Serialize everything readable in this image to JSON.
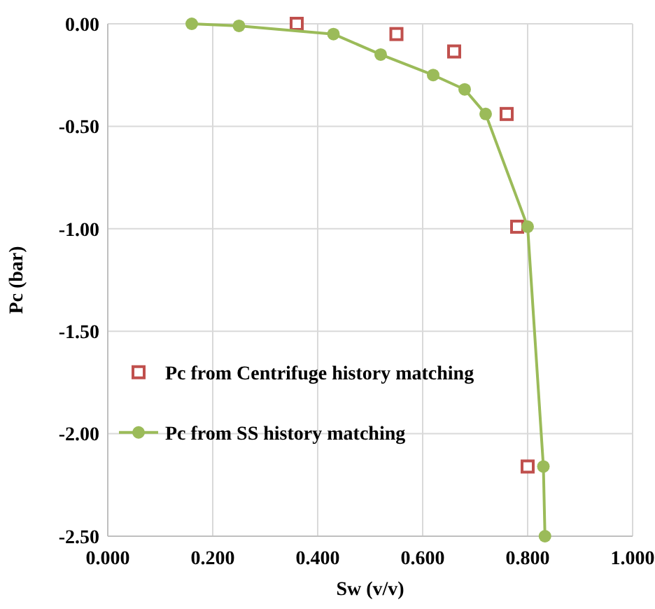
{
  "chart_data": {
    "type": "scatter",
    "xlabel": "Sw (v/v)",
    "ylabel": "Pc (bar)",
    "xlim": [
      0,
      1
    ],
    "ylim": [
      -2.5,
      0
    ],
    "xticks": [
      {
        "value": 0,
        "label": "0.000"
      },
      {
        "value": 0.2,
        "label": "0.200"
      },
      {
        "value": 0.4,
        "label": "0.400"
      },
      {
        "value": 0.6,
        "label": "0.600"
      },
      {
        "value": 0.8,
        "label": "0.800"
      },
      {
        "value": 1,
        "label": "1.000"
      }
    ],
    "yticks": [
      {
        "value": 0,
        "label": "0.00"
      },
      {
        "value": -0.5,
        "label": "-0.50"
      },
      {
        "value": -1,
        "label": "-1.00"
      },
      {
        "value": -1.5,
        "label": "-1.50"
      },
      {
        "value": -2,
        "label": "-2.00"
      },
      {
        "value": -2.5,
        "label": "-2.50"
      }
    ],
    "grid": true,
    "legend": "left",
    "series": [
      {
        "name": "Pc from Centrifuge history matching",
        "marker": "square",
        "color": "#c0504d",
        "x": [
          0.36,
          0.55,
          0.66,
          0.76,
          0.78,
          0.8
        ],
        "values": [
          0,
          -0.05,
          -0.135,
          -0.44,
          -0.99,
          -2.16
        ]
      },
      {
        "name": "Pc from SS history matching",
        "type": "line",
        "marker": "circle",
        "color": "#9bbb59",
        "x": [
          0.16,
          0.25,
          0.43,
          0.52,
          0.62,
          0.68,
          0.72,
          0.8,
          0.83,
          0.833
        ],
        "values": [
          0,
          -0.01,
          -0.05,
          -0.15,
          -0.25,
          -0.32,
          -0.44,
          -0.99,
          -2.16,
          -2.5
        ]
      }
    ]
  }
}
